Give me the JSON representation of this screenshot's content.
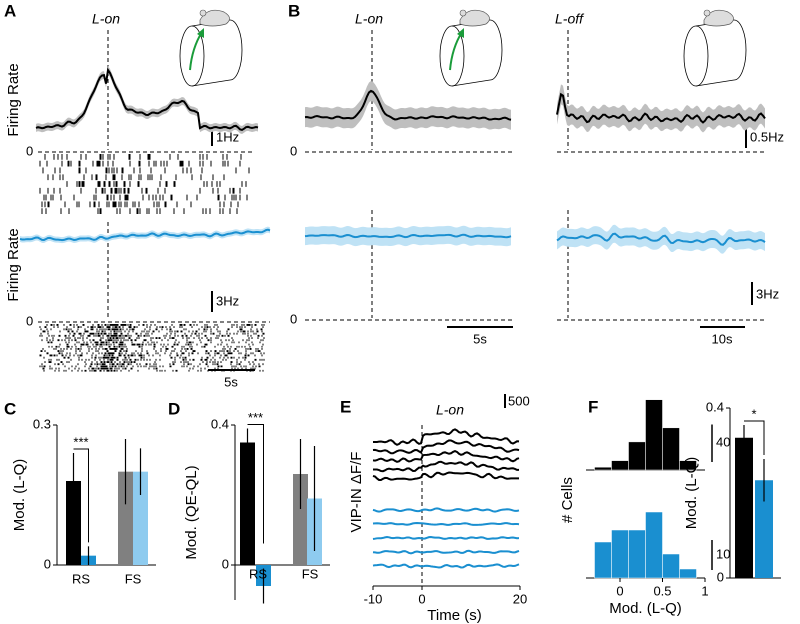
{
  "panel_labels": [
    "A",
    "B",
    "C",
    "D",
    "E",
    "F"
  ],
  "traces": {
    "a_annotation": "L-on",
    "b_annotations": [
      "L-on",
      "L-off"
    ],
    "ylabels": [
      "Firing Rate",
      "Firing Rate"
    ],
    "zero_labels": [
      "0",
      "0",
      "0",
      "0"
    ],
    "scale_labels": [
      "1Hz",
      "3Hz",
      "0.5Hz",
      "3Hz",
      "5s",
      "5s",
      "10s"
    ]
  },
  "chart_data": [
    {
      "type": "bar",
      "ylabel": "Mod. (L-Q)",
      "groups": [
        "RS",
        "FS"
      ],
      "values": [
        0.18,
        0.02,
        0.2,
        0.2
      ],
      "errors": [
        0.06,
        0.02,
        0.07,
        0.05
      ],
      "colors": [
        "#000000",
        "#1a8fd0",
        "#808080",
        "#8ecbef"
      ],
      "ylim": [
        0,
        0.3
      ],
      "yticks": [
        0,
        0.3
      ],
      "significance": "***"
    },
    {
      "type": "bar",
      "ylabel": "Mod. (QE-QL)",
      "groups": [
        "RS",
        "FS"
      ],
      "values": [
        0.35,
        -0.06,
        0.26,
        0.19
      ],
      "errors": [
        0.04,
        0.05,
        0.1,
        0.15
      ],
      "colors": [
        "#000000",
        "#1a8fd0",
        "#808080",
        "#8ecbef"
      ],
      "ylim": [
        -0.1,
        0.4
      ],
      "yticks": [
        0,
        0.4
      ],
      "significance": "***"
    },
    {
      "type": "line",
      "annotation": "L-on",
      "xlabel": "Time (s)",
      "ylabel": "VIP-IN ΔF/F",
      "xlim": [
        -10,
        20
      ],
      "xticks": [
        -10,
        0,
        20
      ],
      "scale_bar": 500
    },
    {
      "type": "histogram",
      "bins": [
        -0.3,
        -0.1,
        0.1,
        0.3,
        0.5,
        0.7,
        0.9
      ],
      "values": [
        3,
        10,
        30,
        75,
        45,
        10
      ],
      "color": "#000000",
      "xlim": [
        -0.4,
        1.0
      ],
      "ylim": [
        0,
        80
      ],
      "scale_bar": 40
    },
    {
      "type": "histogram",
      "ylabel": "# Cells",
      "xlabel": "Mod. (L-Q)",
      "bins": [
        -0.3,
        -0.1,
        0.1,
        0.3,
        0.5,
        0.7,
        0.9
      ],
      "values": [
        12,
        16,
        16,
        22,
        8,
        3
      ],
      "color": "#1a8fd0",
      "xlim": [
        -0.4,
        1.0
      ],
      "xticks": [
        0,
        0.5,
        1
      ],
      "ylim": [
        0,
        25
      ],
      "scale_bar": 10
    },
    {
      "type": "bar",
      "ylabel": "Mod. (L-Q)",
      "values": [
        0.33,
        0.23
      ],
      "errors": [
        0.03,
        0.05
      ],
      "colors": [
        "#000000",
        "#1a8fd0"
      ],
      "ylim": [
        0,
        0.4
      ],
      "yticks": [
        0,
        0.4
      ],
      "significance": "*"
    }
  ]
}
